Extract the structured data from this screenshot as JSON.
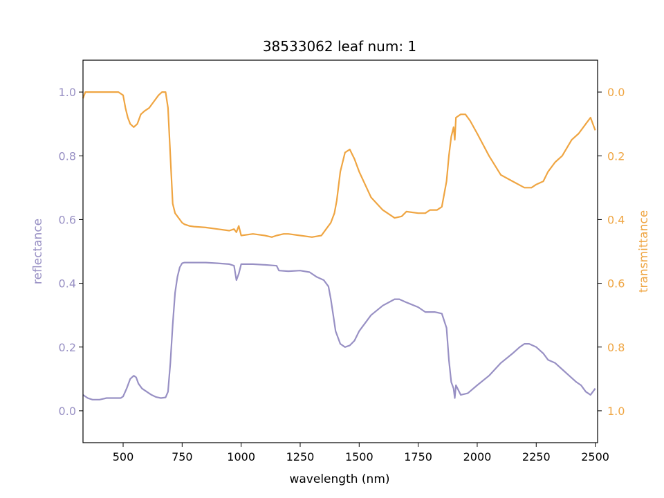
{
  "chart_data": {
    "type": "line",
    "title": "38533062 leaf num: 1",
    "xlabel": "wavelength (nm)",
    "xlim": [
      330,
      2510
    ],
    "x_ticks": [
      500,
      750,
      1000,
      1250,
      1500,
      1750,
      2000,
      2250,
      2500
    ],
    "y_left": {
      "label": "reflectance",
      "lim": [
        -0.1,
        1.1
      ],
      "ticks": [
        0.0,
        0.2,
        0.4,
        0.6,
        0.8,
        1.0
      ],
      "color": "#9890c4"
    },
    "y_right": {
      "label": "transmittance",
      "lim": [
        1.1,
        -0.1
      ],
      "inverted": true,
      "ticks": [
        0.0,
        0.2,
        0.4,
        0.6,
        0.8,
        1.0
      ],
      "color": "#efa542"
    },
    "series": [
      {
        "axis": "left",
        "color": "#9890c4",
        "x": [
          330,
          350,
          370,
          400,
          430,
          460,
          490,
          500,
          515,
          530,
          545,
          555,
          565,
          580,
          600,
          620,
          640,
          660,
          680,
          690,
          700,
          710,
          720,
          730,
          740,
          750,
          760,
          780,
          800,
          850,
          900,
          950,
          970,
          980,
          990,
          1000,
          1050,
          1100,
          1150,
          1160,
          1200,
          1250,
          1290,
          1320,
          1350,
          1370,
          1380,
          1390,
          1400,
          1420,
          1440,
          1460,
          1480,
          1500,
          1550,
          1600,
          1650,
          1670,
          1700,
          1750,
          1780,
          1820,
          1850,
          1870,
          1880,
          1890,
          1900,
          1905,
          1910,
          1930,
          1960,
          2000,
          2050,
          2100,
          2150,
          2180,
          2200,
          2220,
          2250,
          2280,
          2300,
          2330,
          2360,
          2390,
          2420,
          2440,
          2460,
          2480,
          2490,
          2500
        ],
        "y": [
          0.05,
          0.04,
          0.035,
          0.035,
          0.04,
          0.04,
          0.04,
          0.045,
          0.07,
          0.1,
          0.11,
          0.105,
          0.085,
          0.07,
          0.06,
          0.05,
          0.043,
          0.04,
          0.042,
          0.06,
          0.15,
          0.27,
          0.37,
          0.42,
          0.45,
          0.463,
          0.465,
          0.465,
          0.465,
          0.465,
          0.463,
          0.46,
          0.455,
          0.41,
          0.43,
          0.46,
          0.46,
          0.458,
          0.455,
          0.44,
          0.438,
          0.44,
          0.435,
          0.42,
          0.41,
          0.39,
          0.35,
          0.3,
          0.25,
          0.21,
          0.2,
          0.205,
          0.22,
          0.25,
          0.3,
          0.33,
          0.35,
          0.35,
          0.34,
          0.325,
          0.31,
          0.31,
          0.305,
          0.26,
          0.16,
          0.09,
          0.07,
          0.04,
          0.08,
          0.05,
          0.055,
          0.08,
          0.11,
          0.15,
          0.18,
          0.2,
          0.21,
          0.21,
          0.2,
          0.18,
          0.16,
          0.15,
          0.13,
          0.11,
          0.09,
          0.08,
          0.06,
          0.05,
          0.06,
          0.07
        ]
      },
      {
        "axis": "right",
        "color": "#efa542",
        "x": [
          330,
          340,
          360,
          400,
          450,
          480,
          500,
          510,
          520,
          530,
          545,
          560,
          575,
          590,
          610,
          630,
          650,
          665,
          680,
          690,
          700,
          710,
          720,
          730,
          740,
          750,
          760,
          780,
          800,
          850,
          900,
          950,
          970,
          980,
          990,
          1000,
          1050,
          1100,
          1130,
          1150,
          1180,
          1200,
          1250,
          1300,
          1340,
          1360,
          1380,
          1395,
          1405,
          1420,
          1440,
          1460,
          1480,
          1500,
          1550,
          1600,
          1650,
          1680,
          1700,
          1750,
          1780,
          1800,
          1830,
          1850,
          1870,
          1880,
          1890,
          1900,
          1905,
          1910,
          1930,
          1950,
          1970,
          2000,
          2050,
          2100,
          2150,
          2200,
          2230,
          2250,
          2280,
          2300,
          2330,
          2360,
          2400,
          2430,
          2460,
          2480,
          2490,
          2500
        ],
        "y": [
          0.02,
          0.0,
          0.0,
          0.0,
          0.0,
          0.0,
          0.01,
          0.05,
          0.08,
          0.1,
          0.11,
          0.1,
          0.07,
          0.06,
          0.05,
          0.03,
          0.01,
          0.0,
          0.0,
          0.05,
          0.2,
          0.35,
          0.38,
          0.39,
          0.4,
          0.41,
          0.415,
          0.42,
          0.422,
          0.425,
          0.43,
          0.435,
          0.43,
          0.44,
          0.42,
          0.45,
          0.445,
          0.45,
          0.455,
          0.45,
          0.445,
          0.445,
          0.45,
          0.455,
          0.45,
          0.43,
          0.41,
          0.38,
          0.34,
          0.25,
          0.19,
          0.18,
          0.21,
          0.25,
          0.33,
          0.37,
          0.395,
          0.39,
          0.375,
          0.38,
          0.38,
          0.37,
          0.37,
          0.36,
          0.28,
          0.2,
          0.14,
          0.11,
          0.15,
          0.08,
          0.07,
          0.07,
          0.09,
          0.13,
          0.2,
          0.26,
          0.28,
          0.3,
          0.3,
          0.29,
          0.28,
          0.25,
          0.22,
          0.2,
          0.15,
          0.13,
          0.1,
          0.08,
          0.1,
          0.12
        ]
      }
    ]
  }
}
